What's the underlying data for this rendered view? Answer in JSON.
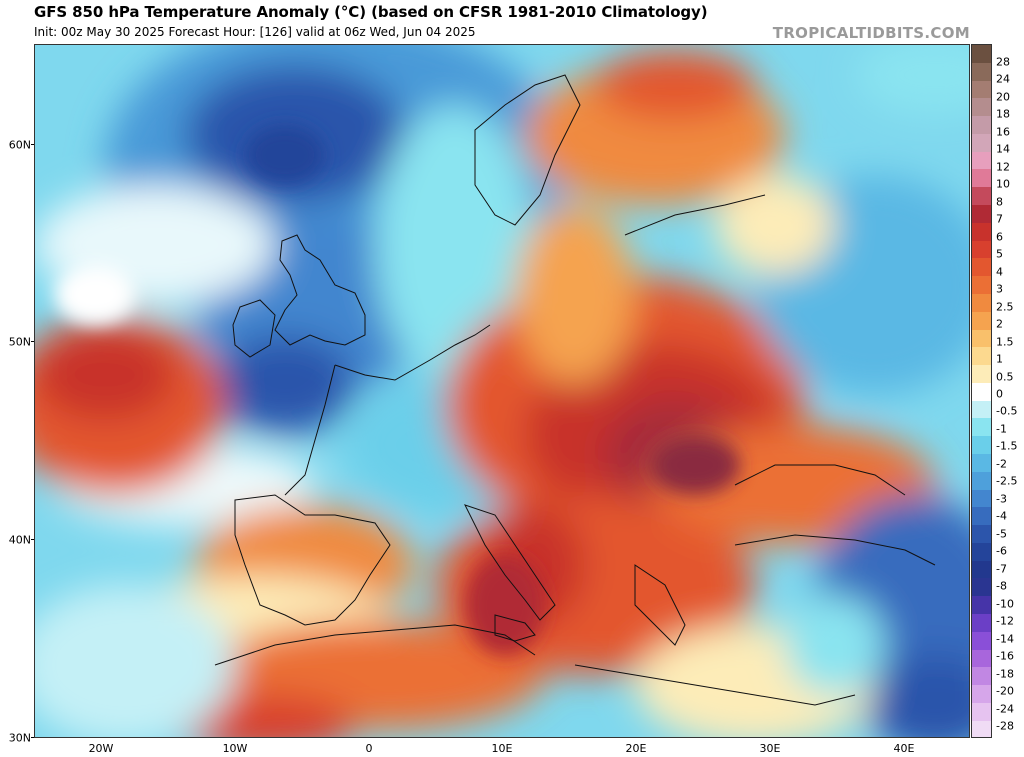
{
  "header": {
    "title": "GFS 850 hPa Temperature Anomaly (°C) (based on CFSR 1981-2010 Climatology)",
    "subtitle": "Init: 00z May 30 2025   Forecast Hour: [126]   valid at 06z Wed, Jun 04 2025",
    "brand": "TROPICALTIDBITS.COM"
  },
  "axes": {
    "lat_labels": [
      {
        "text": "60N",
        "value": 60
      },
      {
        "text": "50N",
        "value": 50
      },
      {
        "text": "40N",
        "value": 40
      },
      {
        "text": "30N",
        "value": 30
      }
    ],
    "lon_labels": [
      {
        "text": "20W",
        "value": -20
      },
      {
        "text": "10W",
        "value": -10
      },
      {
        "text": "0",
        "value": 0
      },
      {
        "text": "10E",
        "value": 10
      },
      {
        "text": "20E",
        "value": 20
      },
      {
        "text": "30E",
        "value": 30
      },
      {
        "text": "40E",
        "value": 40
      }
    ],
    "lon_range": [
      -25,
      45
    ],
    "lat_range": [
      30,
      65
    ]
  },
  "colorbar": {
    "labels": [
      "28",
      "24",
      "20",
      "18",
      "16",
      "14",
      "12",
      "10",
      "8",
      "7",
      "6",
      "5",
      "4",
      "3",
      "2.5",
      "2",
      "1.5",
      "1",
      "0.5",
      "0",
      "-0.5",
      "-1",
      "-1.5",
      "-2",
      "-2.5",
      "-3",
      "-4",
      "-5",
      "-6",
      "-7",
      "-8",
      "-10",
      "-12",
      "-14",
      "-16",
      "-18",
      "-20",
      "-24",
      "-28"
    ],
    "colors": [
      "#6b5040",
      "#8a6a5a",
      "#a47d72",
      "#b48d8e",
      "#c49ba8",
      "#d2a6b8",
      "#e79fbd",
      "#e07a98",
      "#c44a5c",
      "#b02a35",
      "#c8322c",
      "#d8402e",
      "#e3572f",
      "#eb6f35",
      "#f08a3f",
      "#f5a34f",
      "#f9c06b",
      "#fcd98f",
      "#fdecb8",
      "#ffffff",
      "#c4f0f6",
      "#8ae4f0",
      "#6acfea",
      "#5ab8e4",
      "#4ea0db",
      "#4386cf",
      "#376cbe",
      "#2c55ab",
      "#24449a",
      "#22388e",
      "#2a3591",
      "#4634a8",
      "#6b3fc6",
      "#8a4fd8",
      "#a866dc",
      "#c187e3",
      "#d6a6ea",
      "#e6c3f0",
      "#f0dcf5"
    ]
  }
}
